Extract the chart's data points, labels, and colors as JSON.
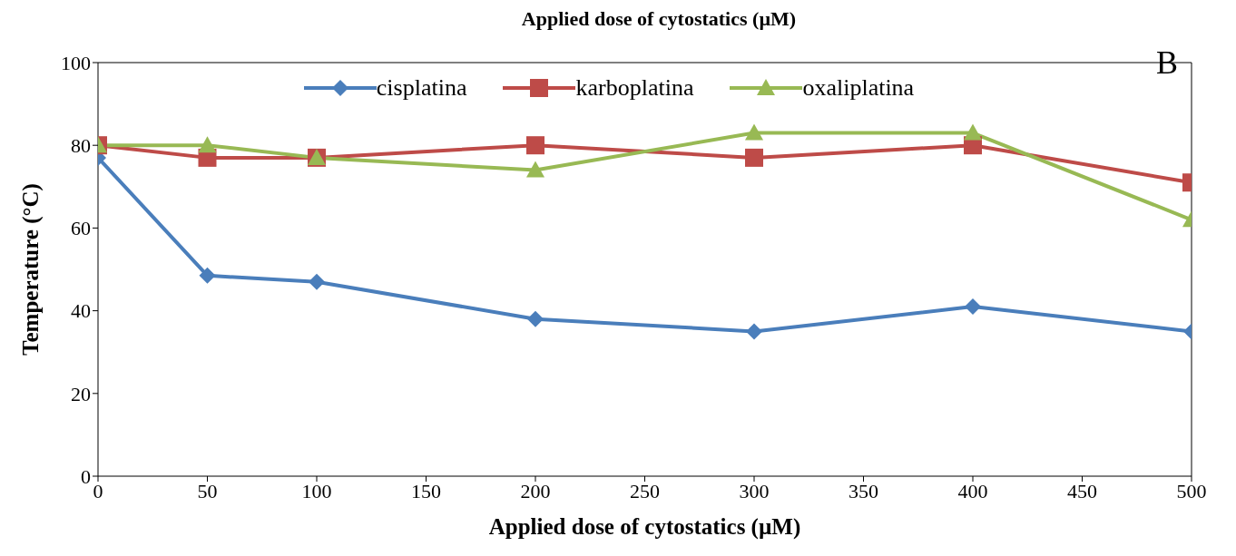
{
  "chart_data": {
    "type": "line",
    "title": "Applied dose of cytostatics (µM)",
    "xlabel": "Applied dose of cytostatics (µM)",
    "ylabel": "Temperature (°C)",
    "x": [
      0,
      50,
      100,
      200,
      300,
      400,
      500
    ],
    "series": [
      {
        "name": "cisplatina",
        "color": "#4a7ebb",
        "marker": "diamond",
        "values": [
          77,
          48.5,
          47,
          38,
          35,
          41,
          35
        ]
      },
      {
        "name": "karboplatina",
        "color": "#be4b48",
        "marker": "square",
        "values": [
          80,
          77,
          77,
          80,
          77,
          80,
          71
        ]
      },
      {
        "name": "oxaliplatina",
        "color": "#98b954",
        "marker": "triangle",
        "values": [
          80,
          80,
          77,
          74,
          83,
          83,
          62
        ]
      }
    ],
    "xlim": [
      0,
      500
    ],
    "xticks": [
      0,
      50,
      100,
      150,
      200,
      250,
      300,
      350,
      400,
      450,
      500
    ],
    "ylim": [
      0,
      100
    ],
    "yticks": [
      0,
      20,
      40,
      60,
      80,
      100
    ],
    "legend": "top",
    "line_style": "solid",
    "grid": false,
    "annotations": [
      "B"
    ]
  }
}
